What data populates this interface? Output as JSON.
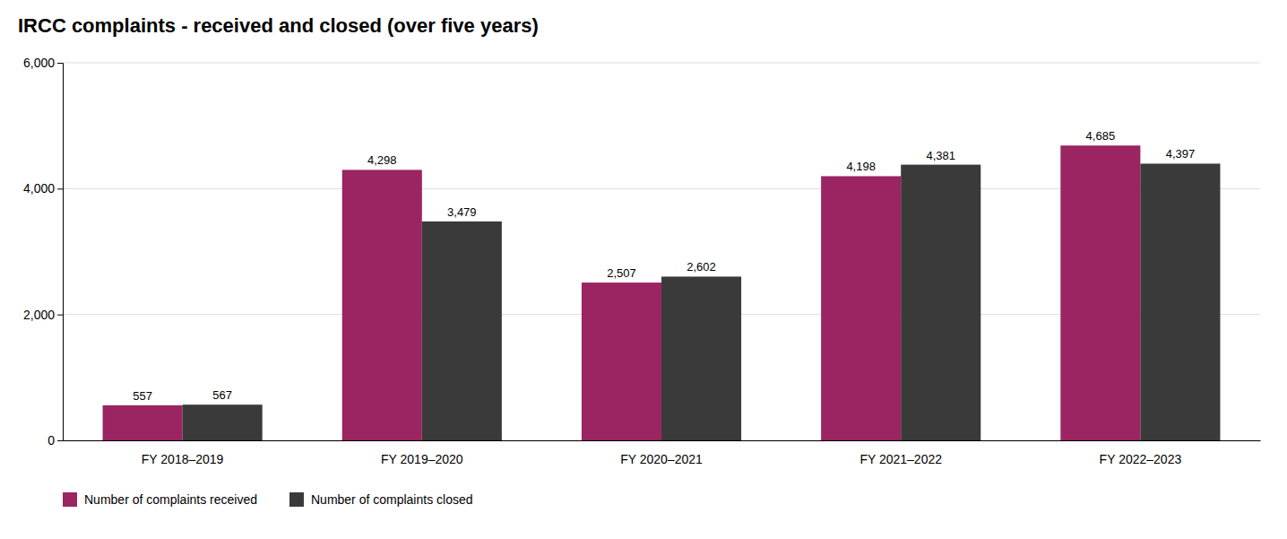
{
  "chart_data": {
    "type": "bar",
    "title": "IRCC complaints - received and closed (over five years)",
    "categories": [
      "FY 2018–2019",
      "FY 2019–2020",
      "FY 2020–2021",
      "FY 2021–2022",
      "FY 2022–2023"
    ],
    "series": [
      {
        "name": "Number of complaints received",
        "color": "#9B2462",
        "values": [
          557,
          4298,
          2507,
          4198,
          4685
        ],
        "value_labels": [
          "557",
          "4,298",
          "2,507",
          "4,198",
          "4,685"
        ]
      },
      {
        "name": "Number of complaints closed",
        "color": "#3A3A3A",
        "values": [
          567,
          3479,
          2602,
          4381,
          4397
        ],
        "value_labels": [
          "567",
          "3,479",
          "2,602",
          "4,381",
          "4,397"
        ]
      }
    ],
    "ylim": [
      0,
      6000
    ],
    "yticks": [
      0,
      {
        "value": 2000,
        "label": "2,000"
      },
      {
        "value": 4000,
        "label": "4,000"
      },
      {
        "value": 6000,
        "label": "6,000"
      }
    ],
    "grid": true,
    "legend": "bottom",
    "data_labels": true
  }
}
